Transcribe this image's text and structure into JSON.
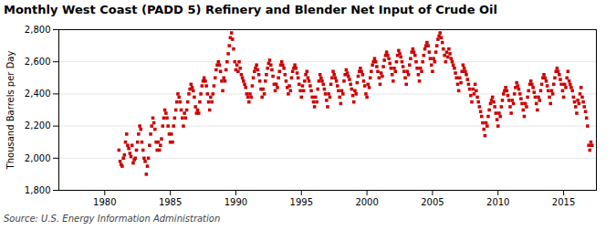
{
  "chart_data": {
    "type": "scatter",
    "title": "Monthly West Coast (PADD 5) Refinery and Blender Net Input of Crude Oil",
    "ylabel": "Thousand Barrels per Day",
    "caption": "Source: U.S. Energy Information Administration",
    "color": "#cc0000",
    "marker": "square",
    "grid": "y",
    "xlim": [
      1976.5,
      2017.5
    ],
    "xticks": [
      1980,
      1985,
      1990,
      1995,
      2000,
      2005,
      2010,
      2015
    ],
    "ylim": [
      1800,
      2800
    ],
    "yticks": [
      {
        "value": 1800,
        "label": "1,800"
      },
      {
        "value": 2000,
        "label": "2,000"
      },
      {
        "value": 2200,
        "label": "2,200"
      },
      {
        "value": 2400,
        "label": "2,400"
      },
      {
        "value": 2600,
        "label": "2,600"
      },
      {
        "value": 2800,
        "label": "2,800"
      }
    ],
    "x": [
      1981.08,
      1981.17,
      1981.25,
      1981.33,
      1981.42,
      1981.5,
      1981.58,
      1981.67,
      1981.75,
      1981.83,
      1981.92,
      1982.0,
      1982.08,
      1982.17,
      1982.25,
      1982.33,
      1982.42,
      1982.5,
      1982.58,
      1982.67,
      1982.75,
      1982.83,
      1982.92,
      1983.0,
      1983.08,
      1983.17,
      1983.25,
      1983.33,
      1983.42,
      1983.5,
      1983.58,
      1983.67,
      1983.75,
      1983.83,
      1983.92,
      1984.0,
      1984.08,
      1984.17,
      1984.25,
      1984.33,
      1984.42,
      1984.5,
      1984.58,
      1984.67,
      1984.75,
      1984.83,
      1984.92,
      1985.0,
      1985.08,
      1985.17,
      1985.25,
      1985.33,
      1985.42,
      1985.5,
      1985.58,
      1985.67,
      1985.75,
      1985.83,
      1985.92,
      1986.0,
      1986.08,
      1986.17,
      1986.25,
      1986.33,
      1986.42,
      1986.5,
      1986.58,
      1986.67,
      1986.75,
      1986.83,
      1986.92,
      1987.0,
      1987.08,
      1987.17,
      1987.25,
      1987.33,
      1987.42,
      1987.5,
      1987.58,
      1987.67,
      1987.75,
      1987.83,
      1987.92,
      1988.0,
      1988.08,
      1988.17,
      1988.25,
      1988.33,
      1988.42,
      1988.5,
      1988.58,
      1988.67,
      1988.75,
      1988.83,
      1988.92,
      1989.0,
      1989.08,
      1989.17,
      1989.25,
      1989.33,
      1989.42,
      1989.5,
      1989.58,
      1989.67,
      1989.75,
      1989.83,
      1989.92,
      1990.0,
      1990.08,
      1990.17,
      1990.25,
      1990.33,
      1990.42,
      1990.5,
      1990.58,
      1990.67,
      1990.75,
      1990.83,
      1990.92,
      1991.0,
      1991.08,
      1991.17,
      1991.25,
      1991.33,
      1991.42,
      1991.5,
      1991.58,
      1991.67,
      1991.75,
      1991.83,
      1991.92,
      1992.0,
      1992.08,
      1992.17,
      1992.25,
      1992.33,
      1992.42,
      1992.5,
      1992.58,
      1992.67,
      1992.75,
      1992.83,
      1992.92,
      1993.0,
      1993.08,
      1993.17,
      1993.25,
      1993.33,
      1993.42,
      1993.5,
      1993.58,
      1993.67,
      1993.75,
      1993.83,
      1993.92,
      1994.0,
      1994.08,
      1994.17,
      1994.25,
      1994.33,
      1994.42,
      1994.5,
      1994.58,
      1994.67,
      1994.75,
      1994.83,
      1994.92,
      1995.0,
      1995.08,
      1995.17,
      1995.25,
      1995.33,
      1995.42,
      1995.5,
      1995.58,
      1995.67,
      1995.75,
      1995.83,
      1995.92,
      1996.0,
      1996.08,
      1996.17,
      1996.25,
      1996.33,
      1996.42,
      1996.5,
      1996.58,
      1996.67,
      1996.75,
      1996.83,
      1996.92,
      1997.0,
      1997.08,
      1997.17,
      1997.25,
      1997.33,
      1997.42,
      1997.5,
      1997.58,
      1997.67,
      1997.75,
      1997.83,
      1997.92,
      1998.0,
      1998.08,
      1998.17,
      1998.25,
      1998.33,
      1998.42,
      1998.5,
      1998.58,
      1998.67,
      1998.75,
      1998.83,
      1998.92,
      1999.0,
      1999.08,
      1999.17,
      1999.25,
      1999.33,
      1999.42,
      1999.5,
      1999.58,
      1999.67,
      1999.75,
      1999.83,
      1999.92,
      2000.0,
      2000.08,
      2000.17,
      2000.25,
      2000.33,
      2000.42,
      2000.5,
      2000.58,
      2000.67,
      2000.75,
      2000.83,
      2000.92,
      2001.0,
      2001.08,
      2001.17,
      2001.25,
      2001.33,
      2001.42,
      2001.5,
      2001.58,
      2001.67,
      2001.75,
      2001.83,
      2001.92,
      2002.0,
      2002.08,
      2002.17,
      2002.25,
      2002.33,
      2002.42,
      2002.5,
      2002.58,
      2002.67,
      2002.75,
      2002.83,
      2002.92,
      2003.0,
      2003.08,
      2003.17,
      2003.25,
      2003.33,
      2003.42,
      2003.5,
      2003.58,
      2003.67,
      2003.75,
      2003.83,
      2003.92,
      2004.0,
      2004.08,
      2004.17,
      2004.25,
      2004.33,
      2004.42,
      2004.5,
      2004.58,
      2004.67,
      2004.75,
      2004.83,
      2004.92,
      2005.0,
      2005.08,
      2005.17,
      2005.25,
      2005.33,
      2005.42,
      2005.5,
      2005.58,
      2005.67,
      2005.75,
      2005.83,
      2005.92,
      2006.0,
      2006.08,
      2006.17,
      2006.25,
      2006.33,
      2006.42,
      2006.5,
      2006.58,
      2006.67,
      2006.75,
      2006.83,
      2006.92,
      2007.0,
      2007.08,
      2007.17,
      2007.25,
      2007.33,
      2007.42,
      2007.5,
      2007.58,
      2007.67,
      2007.75,
      2007.83,
      2007.92,
      2008.0,
      2008.08,
      2008.17,
      2008.25,
      2008.33,
      2008.42,
      2008.5,
      2008.58,
      2008.67,
      2008.75,
      2008.83,
      2008.92,
      2009.0,
      2009.08,
      2009.17,
      2009.25,
      2009.33,
      2009.42,
      2009.5,
      2009.58,
      2009.67,
      2009.75,
      2009.83,
      2009.92,
      2010.0,
      2010.08,
      2010.17,
      2010.25,
      2010.33,
      2010.42,
      2010.5,
      2010.58,
      2010.67,
      2010.75,
      2010.83,
      2010.92,
      2011.0,
      2011.08,
      2011.17,
      2011.25,
      2011.33,
      2011.42,
      2011.5,
      2011.58,
      2011.67,
      2011.75,
      2011.83,
      2011.92,
      2012.0,
      2012.08,
      2012.17,
      2012.25,
      2012.33,
      2012.42,
      2012.5,
      2012.58,
      2012.67,
      2012.75,
      2012.83,
      2012.92,
      2013.0,
      2013.08,
      2013.17,
      2013.25,
      2013.33,
      2013.42,
      2013.5,
      2013.58,
      2013.67,
      2013.75,
      2013.83,
      2013.92,
      2014.0,
      2014.08,
      2014.17,
      2014.25,
      2014.33,
      2014.42,
      2014.5,
      2014.58,
      2014.67,
      2014.75,
      2014.83,
      2014.92,
      2015.0,
      2015.08,
      2015.17,
      2015.25,
      2015.33,
      2015.42,
      2015.5,
      2015.58,
      2015.67,
      2015.75,
      2015.83,
      2015.92,
      2016.0,
      2016.08,
      2016.17,
      2016.25,
      2016.33,
      2016.42,
      2016.5,
      2016.58,
      2016.67,
      2016.75,
      2016.83,
      2016.92,
      2017.0,
      2017.08,
      2017.17
    ],
    "values": [
      2050,
      1980,
      1960,
      1950,
      2000,
      2020,
      2100,
      2150,
      2080,
      2060,
      2030,
      2010,
      2080,
      1970,
      1990,
      2000,
      2050,
      2100,
      2150,
      2200,
      2180,
      2100,
      2050,
      2000,
      1980,
      1900,
      1950,
      2000,
      2080,
      2150,
      2200,
      2250,
      2220,
      2180,
      2100,
      2050,
      2100,
      2050,
      2080,
      2120,
      2200,
      2250,
      2300,
      2280,
      2250,
      2200,
      2150,
      2100,
      2150,
      2100,
      2200,
      2250,
      2300,
      2350,
      2400,
      2380,
      2350,
      2300,
      2250,
      2200,
      2280,
      2250,
      2300,
      2350,
      2400,
      2430,
      2460,
      2440,
      2420,
      2380,
      2320,
      2280,
      2300,
      2280,
      2350,
      2400,
      2450,
      2480,
      2500,
      2480,
      2450,
      2400,
      2350,
      2300,
      2380,
      2350,
      2400,
      2450,
      2500,
      2550,
      2580,
      2600,
      2580,
      2540,
      2480,
      2420,
      2500,
      2480,
      2550,
      2600,
      2650,
      2700,
      2750,
      2780,
      2740,
      2680,
      2600,
      2550,
      2580,
      2540,
      2600,
      2560,
      2520,
      2500,
      2480,
      2460,
      2440,
      2400,
      2380,
      2350,
      2400,
      2380,
      2450,
      2500,
      2540,
      2560,
      2580,
      2550,
      2520,
      2480,
      2430,
      2380,
      2430,
      2400,
      2480,
      2520,
      2560,
      2590,
      2610,
      2580,
      2550,
      2510,
      2460,
      2420,
      2460,
      2440,
      2500,
      2540,
      2580,
      2600,
      2580,
      2560,
      2520,
      2480,
      2440,
      2400,
      2450,
      2420,
      2500,
      2540,
      2560,
      2580,
      2560,
      2530,
      2500,
      2460,
      2420,
      2380,
      2450,
      2420,
      2480,
      2520,
      2540,
      2500,
      2480,
      2450,
      2420,
      2380,
      2350,
      2320,
      2380,
      2350,
      2430,
      2480,
      2520,
      2500,
      2480,
      2460,
      2430,
      2400,
      2360,
      2320,
      2400,
      2380,
      2460,
      2500,
      2540,
      2520,
      2500,
      2480,
      2450,
      2420,
      2380,
      2340,
      2420,
      2400,
      2480,
      2520,
      2550,
      2530,
      2510,
      2490,
      2460,
      2430,
      2390,
      2350,
      2420,
      2400,
      2470,
      2510,
      2540,
      2560,
      2540,
      2520,
      2480,
      2450,
      2400,
      2380,
      2460,
      2440,
      2500,
      2540,
      2580,
      2600,
      2620,
      2600,
      2570,
      2540,
      2500,
      2460,
      2530,
      2510,
      2570,
      2610,
      2640,
      2660,
      2640,
      2620,
      2590,
      2560,
      2520,
      2480,
      2560,
      2540,
      2600,
      2640,
      2670,
      2650,
      2630,
      2600,
      2570,
      2540,
      2500,
      2460,
      2540,
      2520,
      2580,
      2620,
      2660,
      2680,
      2660,
      2640,
      2600,
      2560,
      2520,
      2480,
      2560,
      2540,
      2600,
      2640,
      2680,
      2700,
      2720,
      2700,
      2660,
      2620,
      2580,
      2540,
      2620,
      2600,
      2660,
      2700,
      2740,
      2760,
      2780,
      2750,
      2720,
      2680,
      2640,
      2600,
      2660,
      2630,
      2680,
      2650,
      2620,
      2600,
      2580,
      2560,
      2530,
      2500,
      2460,
      2420,
      2500,
      2470,
      2540,
      2580,
      2560,
      2540,
      2520,
      2490,
      2460,
      2430,
      2390,
      2350,
      2430,
      2400,
      2460,
      2420,
      2380,
      2350,
      2320,
      2290,
      2260,
      2220,
      2180,
      2140,
      2220,
      2200,
      2260,
      2300,
      2340,
      2360,
      2380,
      2350,
      2320,
      2280,
      2240,
      2200,
      2280,
      2260,
      2320,
      2360,
      2400,
      2420,
      2440,
      2420,
      2390,
      2360,
      2320,
      2280,
      2360,
      2340,
      2400,
      2440,
      2470,
      2450,
      2430,
      2400,
      2370,
      2340,
      2300,
      2260,
      2340,
      2320,
      2380,
      2420,
      2460,
      2480,
      2460,
      2440,
      2410,
      2380,
      2340,
      2300,
      2380,
      2360,
      2420,
      2460,
      2500,
      2520,
      2500,
      2480,
      2450,
      2420,
      2380,
      2340,
      2420,
      2400,
      2460,
      2500,
      2540,
      2560,
      2540,
      2520,
      2490,
      2460,
      2420,
      2380,
      2460,
      2440,
      2500,
      2540,
      2480,
      2460,
      2440,
      2420,
      2380,
      2350,
      2320,
      2280,
      2360,
      2340,
      2400,
      2440,
      2380,
      2350,
      2320,
      2290,
      2250,
      2200,
      2080,
      2050,
      2100,
      2080
    ]
  }
}
